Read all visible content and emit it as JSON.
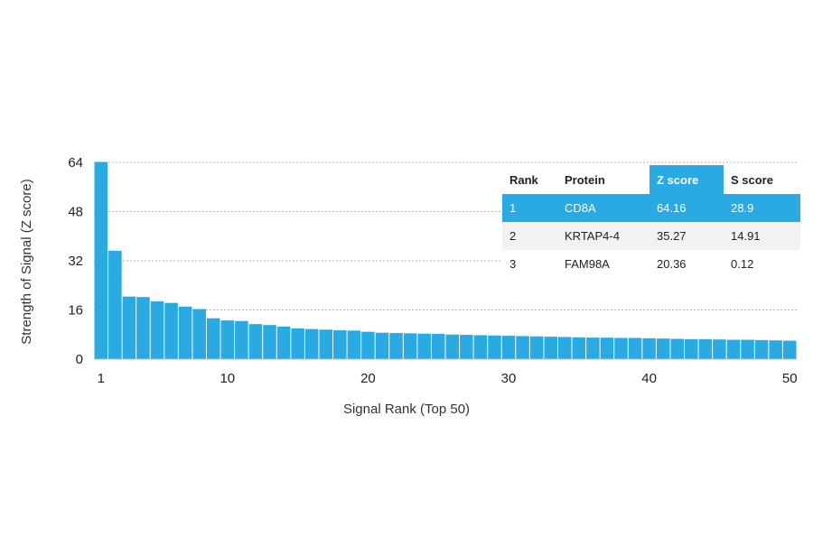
{
  "chart_data": {
    "type": "bar",
    "xlabel": "Signal Rank (Top 50)",
    "ylabel": "Strength of Signal (Z score)",
    "ylim": [
      0,
      64
    ],
    "yticks": [
      0,
      16,
      32,
      48,
      64
    ],
    "xticks": [
      1,
      10,
      20,
      30,
      40,
      50
    ],
    "grid": "horizontal dotted",
    "bar_color": "#29aae2",
    "x": [
      1,
      2,
      3,
      4,
      5,
      6,
      7,
      8,
      9,
      10,
      11,
      12,
      13,
      14,
      15,
      16,
      17,
      18,
      19,
      20,
      21,
      22,
      23,
      24,
      25,
      26,
      27,
      28,
      29,
      30,
      31,
      32,
      33,
      34,
      35,
      36,
      37,
      38,
      39,
      40,
      41,
      42,
      43,
      44,
      45,
      46,
      47,
      48,
      49,
      50
    ],
    "values": [
      64.16,
      35.27,
      20.36,
      20.2,
      18.8,
      18.3,
      17.1,
      16.3,
      13.3,
      12.6,
      12.4,
      11.4,
      11.1,
      10.6,
      10.0,
      9.8,
      9.6,
      9.4,
      9.3,
      8.9,
      8.6,
      8.5,
      8.4,
      8.3,
      8.2,
      8.0,
      7.9,
      7.8,
      7.7,
      7.6,
      7.5,
      7.4,
      7.3,
      7.2,
      7.1,
      7.0,
      7.0,
      6.9,
      6.9,
      6.8,
      6.7,
      6.6,
      6.5,
      6.5,
      6.4,
      6.3,
      6.3,
      6.2,
      6.1,
      6.0
    ]
  },
  "table": {
    "headers": [
      "Rank",
      "Protein",
      "Z score",
      "S score"
    ],
    "rows": [
      [
        "1",
        "CD8A",
        "64.16",
        "28.9"
      ],
      [
        "2",
        "KRTAP4-4",
        "35.27",
        "14.91"
      ],
      [
        "3",
        "FAM98A",
        "20.36",
        "0.12"
      ]
    ],
    "highlight_color": "#29aae2"
  }
}
